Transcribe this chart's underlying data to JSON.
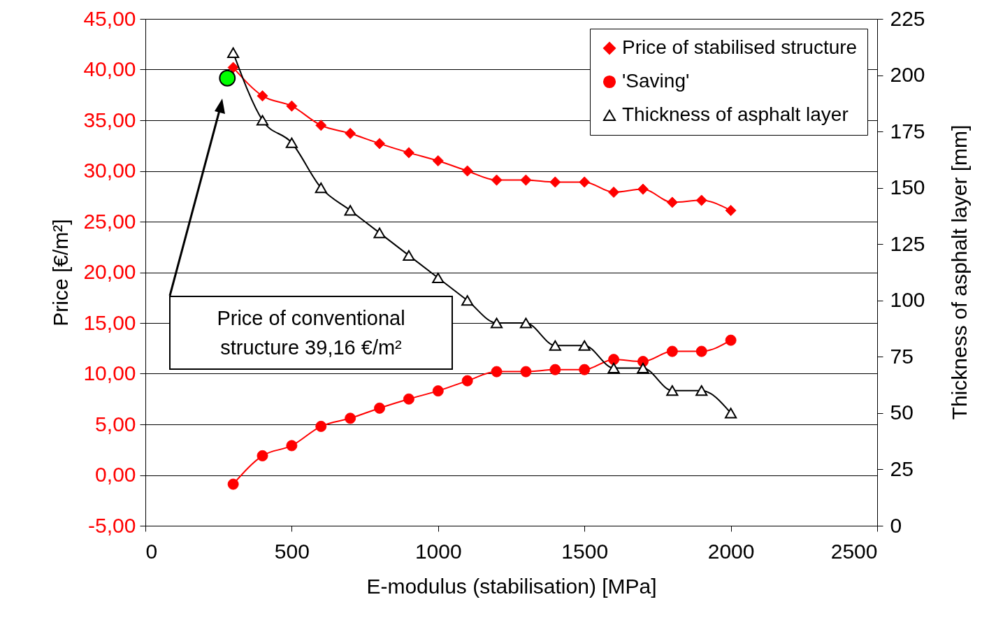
{
  "chart_data": {
    "type": "line",
    "xlabel": "E-modulus (stabilisation) [MPa]",
    "ylabel": "Price [€/m²]",
    "y2label": "Thickness of asphalt layer [mm]",
    "xlim": [
      0,
      2500
    ],
    "xticks": [
      0,
      500,
      1000,
      1500,
      2000,
      2500
    ],
    "ylim": [
      -5,
      45
    ],
    "yticks": [
      {
        "value": -5,
        "label": "-5,00"
      },
      {
        "value": 0,
        "label": "0,00"
      },
      {
        "value": 5,
        "label": "5,00"
      },
      {
        "value": 10,
        "label": "10,00"
      },
      {
        "value": 15,
        "label": "15,00"
      },
      {
        "value": 20,
        "label": "20,00"
      },
      {
        "value": 25,
        "label": "25,00"
      },
      {
        "value": 30,
        "label": "30,00"
      },
      {
        "value": 35,
        "label": "35,00"
      },
      {
        "value": 40,
        "label": "40,00"
      },
      {
        "value": 45,
        "label": "45,00"
      }
    ],
    "y2lim": [
      0,
      225
    ],
    "y2ticks": [
      0,
      25,
      50,
      75,
      100,
      125,
      150,
      175,
      200,
      225
    ],
    "grid": "y",
    "legend": "top right",
    "annotations": [
      "Price of conventional structure 39,16 €/m²"
    ],
    "series": [
      {
        "name": "Price of stabilised structure",
        "color": "#ff0000",
        "marker": "diamond",
        "x": [
          300,
          400,
          500,
          600,
          700,
          800,
          900,
          1000,
          1100,
          1200,
          1300,
          1400,
          1500,
          1600,
          1700,
          1800,
          1900,
          2000
        ],
        "values": [
          40.2,
          37.4,
          36.4,
          34.5,
          33.7,
          32.7,
          31.8,
          31.0,
          30.0,
          29.1,
          29.1,
          28.9,
          28.9,
          27.9,
          28.2,
          26.9,
          27.1,
          26.1
        ]
      },
      {
        "name": "'Saving'",
        "color": "#ff0000",
        "marker": "circle",
        "x": [
          300,
          400,
          500,
          600,
          700,
          800,
          900,
          1000,
          1100,
          1200,
          1300,
          1400,
          1500,
          1600,
          1700,
          1800,
          1900,
          2000
        ],
        "values": [
          -0.9,
          1.9,
          2.9,
          4.8,
          5.6,
          6.6,
          7.5,
          8.3,
          9.3,
          10.2,
          10.2,
          10.4,
          10.4,
          11.4,
          11.2,
          12.2,
          12.2,
          13.3
        ]
      },
      {
        "name": "Thickness of asphalt layer",
        "color": "#000000",
        "marker": "triangle",
        "axis": "y2",
        "x": [
          300,
          400,
          500,
          600,
          700,
          800,
          900,
          1000,
          1100,
          1200,
          1300,
          1400,
          1500,
          1600,
          1700,
          1800,
          1900,
          2000
        ],
        "values": [
          210,
          180,
          170,
          150,
          140,
          130,
          120,
          110,
          100,
          90,
          90,
          80,
          80,
          70,
          70,
          60,
          60,
          50
        ]
      },
      {
        "type": "scatter",
        "color": "#00ff00",
        "marker": "circle",
        "x": [
          280
        ],
        "values": [
          39.16
        ]
      }
    ]
  }
}
